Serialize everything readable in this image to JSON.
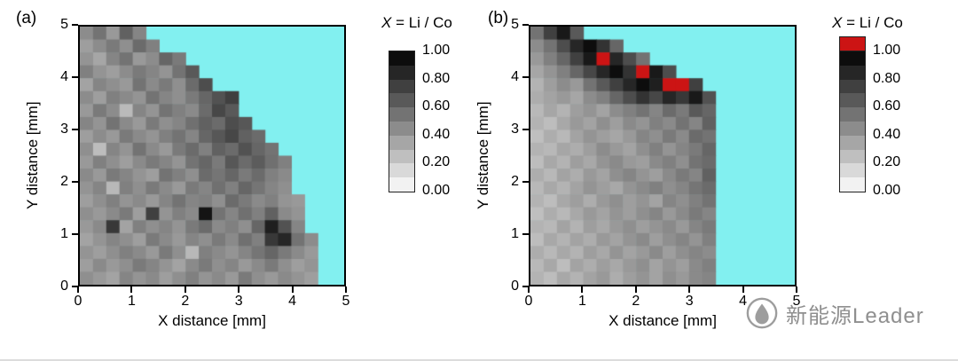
{
  "watermark": {
    "text": "新能源Leader"
  },
  "panels": [
    {
      "label": "(a)",
      "xlabel": "X distance [mm]",
      "ylabel": "Y distance [mm]",
      "xticks": [
        "0",
        "1",
        "2",
        "3",
        "4",
        "5"
      ],
      "yticks": [
        "0",
        "1",
        "2",
        "3",
        "4",
        "5"
      ],
      "colorbar": {
        "title_italic": "X",
        "title_text": " = Li / Co",
        "tick_labels": [
          "1.00",
          "0.80",
          "0.60",
          "0.40",
          "0.20",
          "0.00"
        ],
        "has_overflow": false
      }
    },
    {
      "label": "(b)",
      "xlabel": "X distance [mm]",
      "ylabel": "Y distance [mm]",
      "xticks": [
        "0",
        "1",
        "2",
        "3",
        "4",
        "5"
      ],
      "yticks": [
        "0",
        "1",
        "2",
        "3",
        "4",
        "5"
      ],
      "colorbar": {
        "title_italic": "X",
        "title_text": " = Li / Co",
        "tick_labels": [
          "1.00",
          "0.80",
          "0.60",
          "0.40",
          "0.20",
          "0.00"
        ],
        "has_overflow": true
      }
    }
  ],
  "chart_data": [
    {
      "type": "heatmap",
      "title": "(a)",
      "xlabel": "X distance [mm]",
      "ylabel": "Y distance [mm]",
      "xlim": [
        0,
        5
      ],
      "ylim": [
        0,
        5
      ],
      "cell_size_mm": 0.25,
      "grid_cols": 20,
      "grid_rows": 20,
      "colorbar_title": "X = Li / Co",
      "colorbar_ticks": [
        1.0,
        0.8,
        0.6,
        0.4,
        0.2,
        0.0
      ],
      "colormap": "grayscale 0.00=white to 1.00=black",
      "background_color": "#82f0f0",
      "overflow_color": "#cc1414",
      "values_note": "rows top (y=5) to bottom (y=0), ragged rows start at x=0; cells beyond row end are background (no sample)",
      "values": [
        [
          0.45,
          0.55,
          0.4,
          0.62,
          0.48
        ],
        [
          0.38,
          0.45,
          0.52,
          0.44,
          0.58,
          0.5
        ],
        [
          0.42,
          0.35,
          0.48,
          0.55,
          0.4,
          0.45,
          0.6,
          0.52
        ],
        [
          0.5,
          0.42,
          0.38,
          0.45,
          0.52,
          0.48,
          0.42,
          0.55,
          0.65
        ],
        [
          0.36,
          0.48,
          0.44,
          0.4,
          0.55,
          0.46,
          0.52,
          0.44,
          0.58,
          0.7
        ],
        [
          0.45,
          0.38,
          0.5,
          0.46,
          0.42,
          0.55,
          0.48,
          0.44,
          0.52,
          0.6,
          0.68,
          0.75
        ],
        [
          0.4,
          0.52,
          0.45,
          0.27,
          0.48,
          0.42,
          0.55,
          0.5,
          0.46,
          0.58,
          0.72,
          0.65
        ],
        [
          0.48,
          0.42,
          0.55,
          0.46,
          0.4,
          0.52,
          0.44,
          0.48,
          0.56,
          0.62,
          0.58,
          0.7,
          0.66
        ],
        [
          0.38,
          0.45,
          0.4,
          0.52,
          0.46,
          0.42,
          0.5,
          0.55,
          0.48,
          0.6,
          0.66,
          0.72,
          0.62,
          0.58
        ],
        [
          0.44,
          0.26,
          0.48,
          0.42,
          0.55,
          0.46,
          0.4,
          0.52,
          0.58,
          0.5,
          0.62,
          0.58,
          0.68,
          0.6,
          0.55
        ],
        [
          0.4,
          0.5,
          0.44,
          0.38,
          0.46,
          0.52,
          0.48,
          0.42,
          0.55,
          0.6,
          0.52,
          0.66,
          0.58,
          0.64,
          0.56,
          0.5
        ],
        [
          0.46,
          0.4,
          0.52,
          0.48,
          0.42,
          0.38,
          0.55,
          0.5,
          0.44,
          0.58,
          0.54,
          0.6,
          0.52,
          0.58,
          0.5,
          0.46
        ],
        [
          0.42,
          0.48,
          0.28,
          0.5,
          0.44,
          0.52,
          0.46,
          0.4,
          0.52,
          0.48,
          0.56,
          0.5,
          0.6,
          0.54,
          0.48,
          0.44
        ],
        [
          0.38,
          0.44,
          0.5,
          0.42,
          0.46,
          0.4,
          0.48,
          0.55,
          0.48,
          0.5,
          0.44,
          0.58,
          0.52,
          0.46,
          0.5,
          0.42,
          0.4
        ],
        [
          0.44,
          0.4,
          0.46,
          0.52,
          0.38,
          0.75,
          0.42,
          0.5,
          0.46,
          0.92,
          0.55,
          0.48,
          0.56,
          0.5,
          0.62,
          0.46,
          0.42
        ],
        [
          0.4,
          0.46,
          0.78,
          0.36,
          0.5,
          0.44,
          0.48,
          0.42,
          0.52,
          0.58,
          0.46,
          0.5,
          0.44,
          0.6,
          0.88,
          0.68,
          0.48
        ],
        [
          0.36,
          0.42,
          0.48,
          0.44,
          0.38,
          0.52,
          0.46,
          0.4,
          0.48,
          0.44,
          0.52,
          0.46,
          0.56,
          0.5,
          0.78,
          0.85,
          0.55,
          0.45
        ],
        [
          0.42,
          0.38,
          0.44,
          0.5,
          0.46,
          0.4,
          0.52,
          0.44,
          0.28,
          0.5,
          0.46,
          0.42,
          0.48,
          0.54,
          0.6,
          0.52,
          0.46,
          0.4
        ],
        [
          0.38,
          0.46,
          0.4,
          0.44,
          0.52,
          0.48,
          0.42,
          0.36,
          0.46,
          0.52,
          0.44,
          0.48,
          0.4,
          0.46,
          0.52,
          0.44,
          0.38,
          0.42
        ],
        [
          0.44,
          0.4,
          0.36,
          0.48,
          0.42,
          0.46,
          0.38,
          0.44,
          0.5,
          0.42,
          0.46,
          0.4,
          0.52,
          0.44,
          0.4,
          0.46,
          0.42,
          0.38
        ]
      ]
    },
    {
      "type": "heatmap",
      "title": "(b)",
      "xlabel": "X distance [mm]",
      "ylabel": "Y distance [mm]",
      "xlim": [
        0,
        5
      ],
      "ylim": [
        0,
        5
      ],
      "cell_size_mm": 0.25,
      "grid_cols": 20,
      "grid_rows": 20,
      "colorbar_title": "X = Li / Co",
      "colorbar_ticks": [
        1.0,
        0.8,
        0.6,
        0.4,
        0.2,
        0.0
      ],
      "colormap": "grayscale 0.00=white to 1.00=black; red = exceeds 1.00",
      "background_color": "#82f0f0",
      "overflow_color": "#cc1414",
      "values_note": "rows top (y=5) to bottom (y=0), ragged rows start at x=0; values > 1.00 render red",
      "values": [
        [
          0.55,
          0.75,
          0.9,
          0.65
        ],
        [
          0.45,
          0.55,
          0.7,
          0.85,
          0.95,
          0.8,
          0.6
        ],
        [
          0.4,
          0.5,
          0.6,
          0.75,
          0.9,
          1.05,
          0.85,
          0.7,
          0.55
        ],
        [
          0.35,
          0.42,
          0.5,
          0.6,
          0.72,
          0.85,
          0.95,
          0.8,
          1.05,
          0.9,
          0.7
        ],
        [
          0.3,
          0.38,
          0.45,
          0.4,
          0.55,
          0.65,
          0.75,
          0.85,
          0.95,
          0.88,
          1.05,
          1.02,
          0.75
        ],
        [
          0.32,
          0.36,
          0.4,
          0.35,
          0.45,
          0.5,
          0.6,
          0.7,
          0.8,
          0.72,
          0.85,
          0.78,
          0.9,
          0.68
        ],
        [
          0.28,
          0.35,
          0.3,
          0.38,
          0.42,
          0.36,
          0.45,
          0.5,
          0.55,
          0.48,
          0.58,
          0.52,
          0.65,
          0.6
        ],
        [
          0.3,
          0.26,
          0.34,
          0.4,
          0.36,
          0.44,
          0.38,
          0.46,
          0.42,
          0.5,
          0.46,
          0.55,
          0.48,
          0.62
        ],
        [
          0.25,
          0.32,
          0.28,
          0.36,
          0.42,
          0.38,
          0.35,
          0.4,
          0.48,
          0.44,
          0.52,
          0.46,
          0.58,
          0.55
        ],
        [
          0.3,
          0.28,
          0.35,
          0.32,
          0.38,
          0.45,
          0.4,
          0.36,
          0.44,
          0.5,
          0.42,
          0.48,
          0.52,
          0.6
        ],
        [
          0.26,
          0.34,
          0.3,
          0.38,
          0.34,
          0.42,
          0.46,
          0.4,
          0.38,
          0.46,
          0.5,
          0.44,
          0.55,
          0.58
        ],
        [
          0.32,
          0.28,
          0.36,
          0.32,
          0.4,
          0.36,
          0.44,
          0.48,
          0.42,
          0.38,
          0.46,
          0.52,
          0.48,
          0.62
        ],
        [
          0.28,
          0.34,
          0.3,
          0.36,
          0.42,
          0.38,
          0.34,
          0.42,
          0.46,
          0.5,
          0.44,
          0.48,
          0.54,
          0.58
        ],
        [
          0.3,
          0.26,
          0.34,
          0.38,
          0.32,
          0.4,
          0.44,
          0.38,
          0.42,
          0.36,
          0.48,
          0.44,
          0.5,
          0.55
        ],
        [
          0.25,
          0.32,
          0.28,
          0.34,
          0.4,
          0.36,
          0.42,
          0.38,
          0.44,
          0.48,
          0.4,
          0.46,
          0.52,
          0.48
        ],
        [
          0.3,
          0.28,
          0.36,
          0.3,
          0.38,
          0.34,
          0.4,
          0.44,
          0.38,
          0.42,
          0.46,
          0.4,
          0.48,
          0.52
        ],
        [
          0.26,
          0.34,
          0.3,
          0.36,
          0.32,
          0.4,
          0.36,
          0.42,
          0.46,
          0.38,
          0.44,
          0.48,
          0.42,
          0.5
        ],
        [
          0.32,
          0.28,
          0.34,
          0.3,
          0.38,
          0.34,
          0.42,
          0.36,
          0.4,
          0.46,
          0.38,
          0.44,
          0.48,
          0.45
        ],
        [
          0.28,
          0.34,
          0.26,
          0.36,
          0.32,
          0.38,
          0.34,
          0.4,
          0.44,
          0.36,
          0.42,
          0.38,
          0.46,
          0.5
        ],
        [
          0.3,
          0.26,
          0.34,
          0.3,
          0.36,
          0.4,
          0.32,
          0.38,
          0.42,
          0.36,
          0.44,
          0.4,
          0.46,
          0.48
        ]
      ]
    }
  ]
}
